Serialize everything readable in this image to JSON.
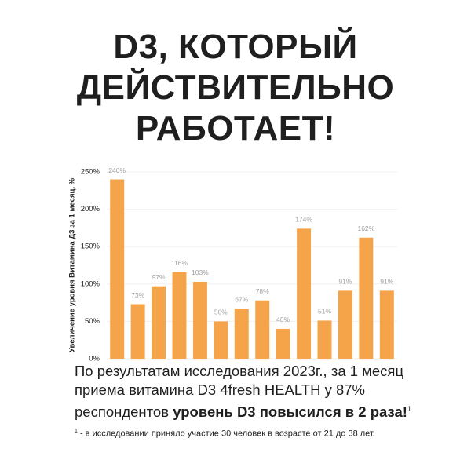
{
  "header": {
    "lines": [
      "D3, КОТОРЫЙ",
      "ДЕЙСТВИТЕЛЬНО",
      "РАБОТАЕТ!"
    ]
  },
  "chart_data": {
    "type": "bar",
    "y_label": "Увеличение уровня Витамина Д3 за 1 месяц, %",
    "categories": [
      null,
      null,
      null,
      null,
      null,
      null,
      null,
      null,
      null,
      null,
      null,
      null,
      null,
      null
    ],
    "values": [
      240,
      73,
      97,
      116,
      103,
      50,
      67,
      78,
      40,
      174,
      51,
      91,
      162,
      91
    ],
    "value_labels": [
      "240%",
      "73%",
      "97%",
      "116%",
      "103%",
      "50%",
      "67%",
      "78%",
      "40%",
      "174%",
      "51%",
      "91%",
      "162%",
      "91%"
    ],
    "color": "#f6a449",
    "ylim": [
      0,
      250
    ],
    "yticks": [
      {
        "value": 0,
        "label": "0%"
      },
      {
        "value": 50,
        "label": "50%"
      },
      {
        "value": 100,
        "label": "100%"
      },
      {
        "value": 150,
        "label": "150%"
      },
      {
        "value": 200,
        "label": "200%"
      },
      {
        "value": 250,
        "label": "250%"
      }
    ],
    "grid": true
  },
  "caption": {
    "lines": [
      "По результатам исследования 2023г., за 1 месяц",
      "приема витамина D3 4fresh HEALTH у 87%",
      "респондентов "
    ],
    "emphasis": "уровень D3 повысился в 2 раза!",
    "note_mark": "1"
  },
  "footnote": {
    "mark": "1",
    "text": " - в исследовании приняло участие 30 человек в возрасте от 21 до 38 лет."
  }
}
